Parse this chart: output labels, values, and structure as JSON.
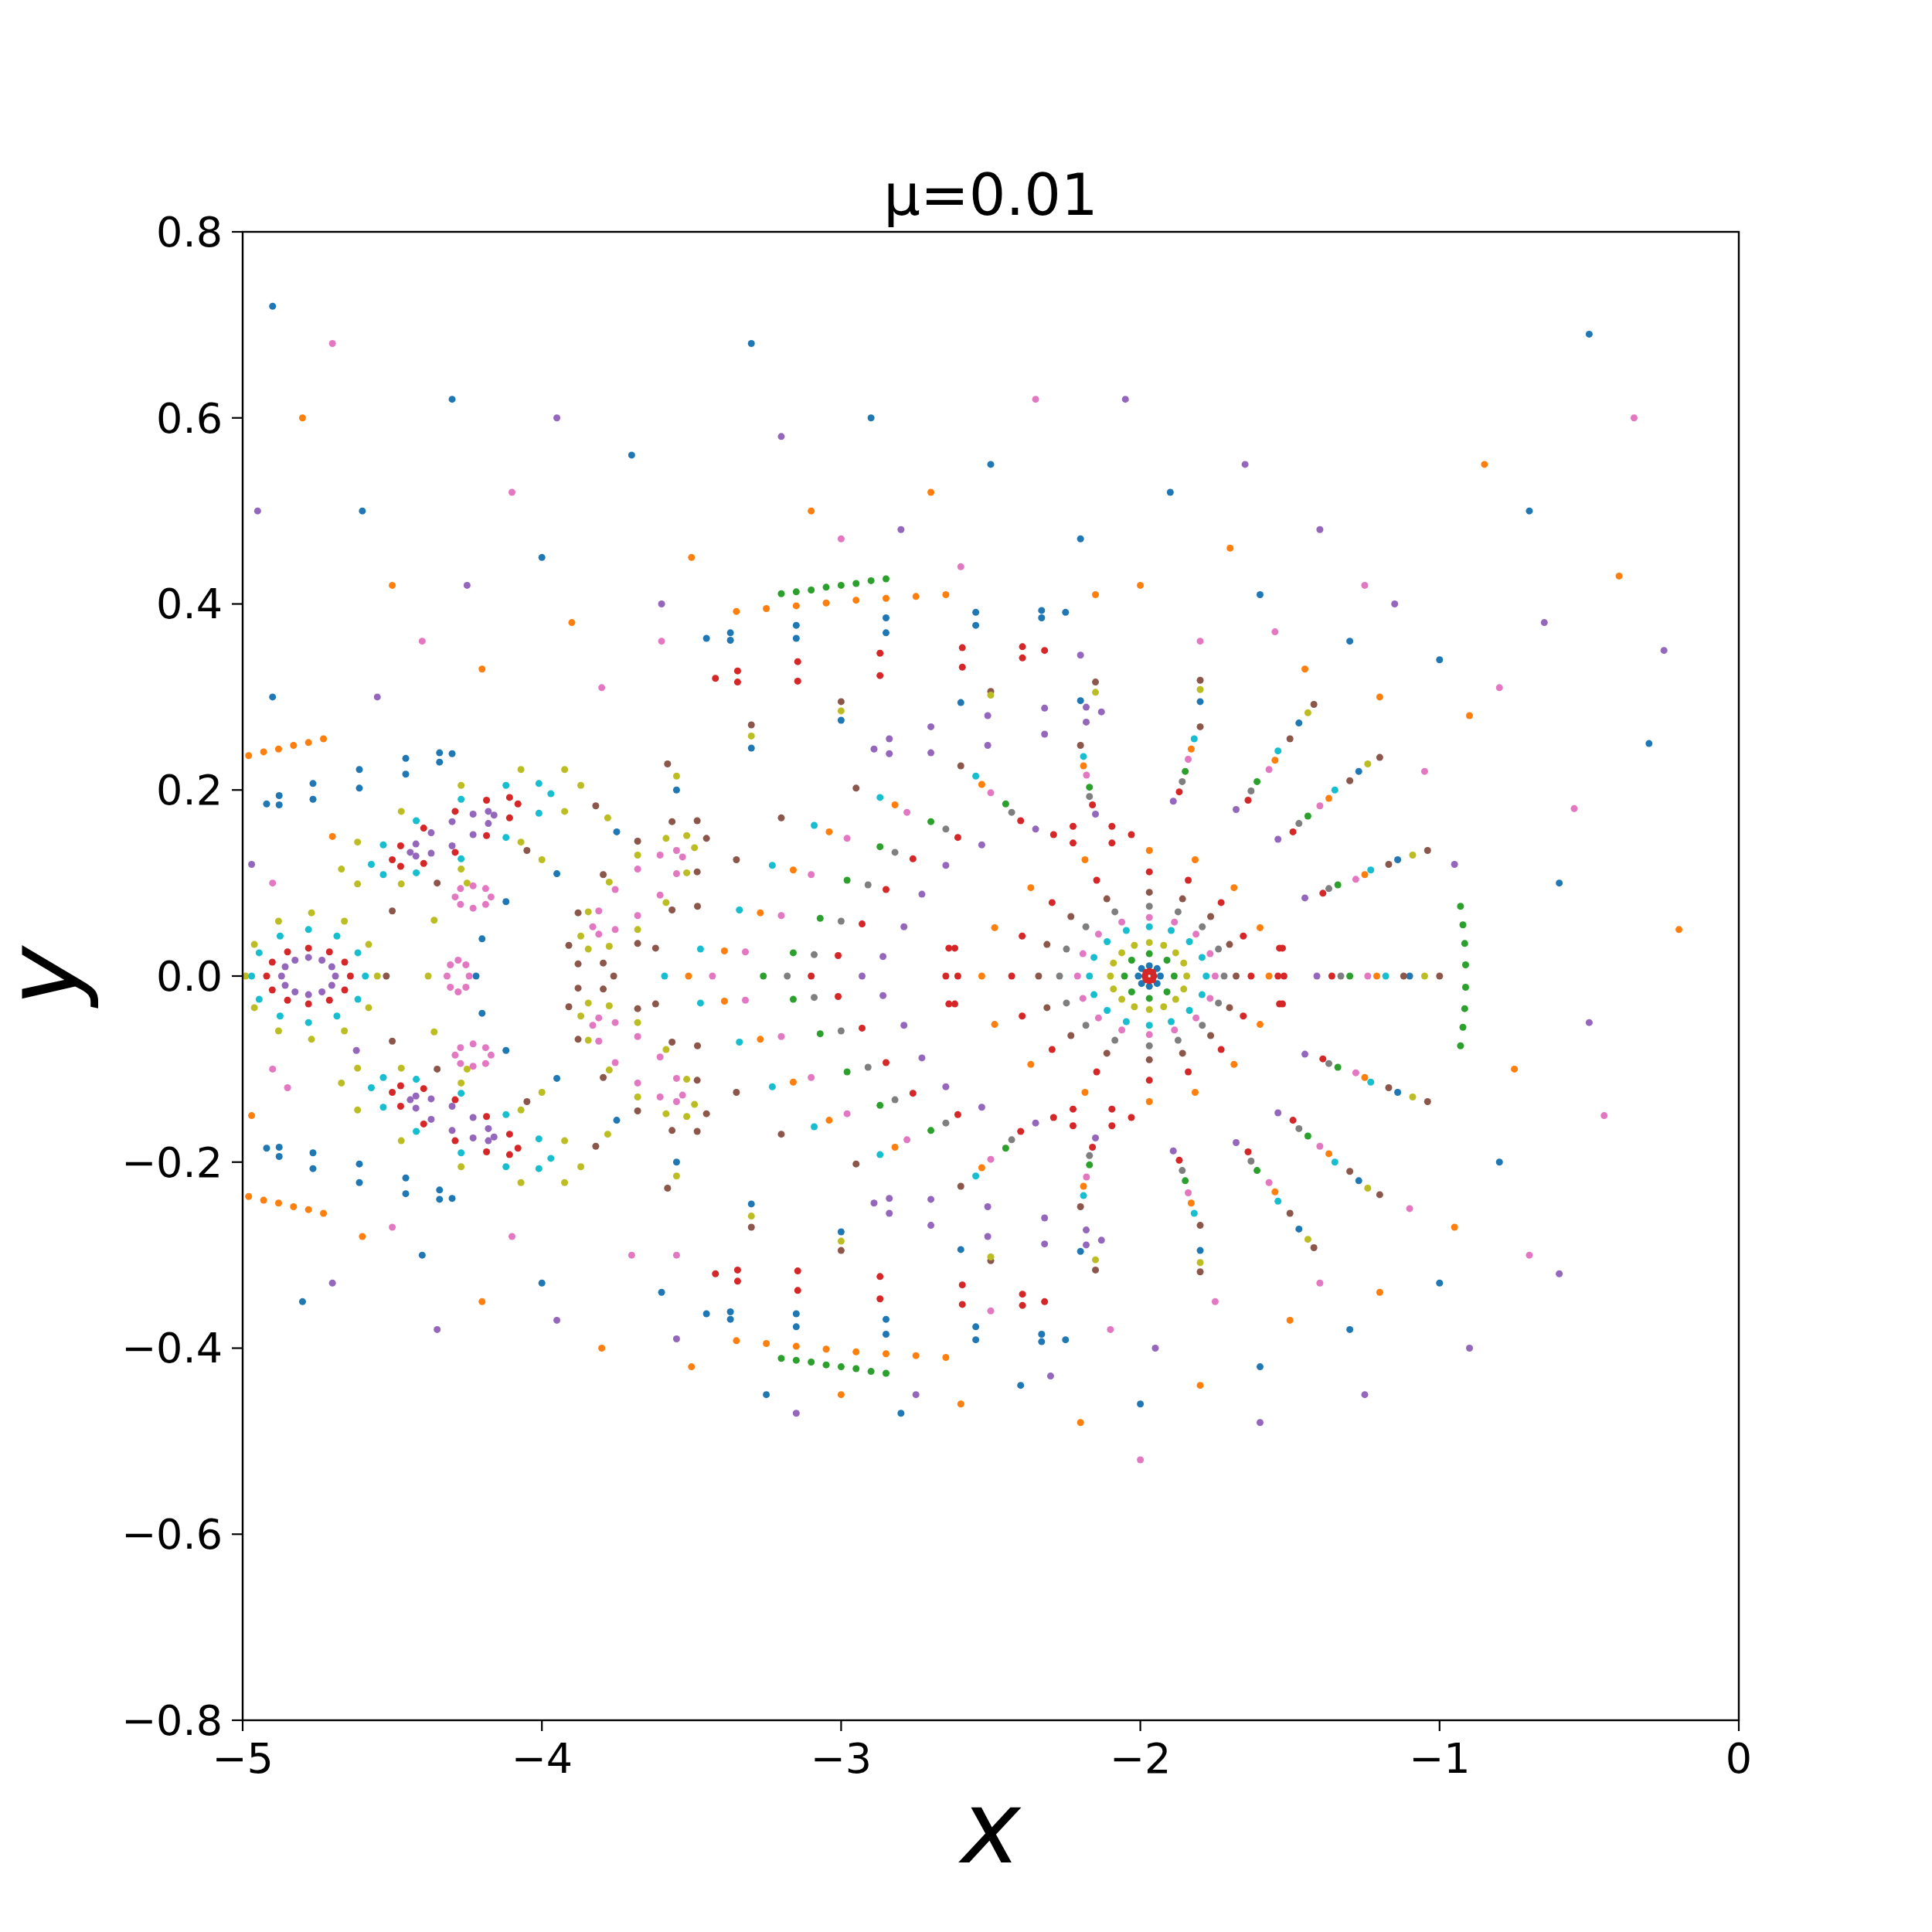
{
  "chart_data": {
    "type": "scatter",
    "title": "μ=0.01",
    "xlabel": "x",
    "ylabel": "y",
    "xlim": [
      -5,
      0
    ],
    "ylim": [
      -0.8,
      0.8
    ],
    "xticks": [
      {
        "value": -5,
        "label": "−5"
      },
      {
        "value": -4,
        "label": "−4"
      },
      {
        "value": -3,
        "label": "−3"
      },
      {
        "value": -2,
        "label": "−2"
      },
      {
        "value": -1,
        "label": "−1"
      },
      0
    ],
    "yticks": [
      {
        "value": -0.8,
        "label": "−0.8"
      },
      {
        "value": -0.6,
        "label": "−0.6"
      },
      {
        "value": -0.4,
        "label": "−0.4"
      },
      {
        "value": -0.2,
        "label": "−0.2"
      },
      {
        "value": 0,
        "label": "0.0"
      },
      0.2,
      0.4,
      0.6,
      0.8
    ],
    "marker": "circle",
    "series": [
      {
        "color": "#1f77b4",
        "x": [
          -4.9,
          -4.6,
          -4.3,
          -4.0,
          -3.7,
          -3.3,
          -2.9,
          -2.5,
          -2.2,
          -1.9,
          -1.6,
          -1.3,
          -1.0,
          -0.7,
          -0.5,
          -0.3,
          -0.6,
          -0.8,
          -1.0,
          -1.3,
          -1.6,
          -2.0,
          -2.4,
          -2.8,
          -3.25,
          -3.6,
          -4.0,
          -4.4,
          -4.8,
          -4.9
        ],
        "values": [
          0.72,
          0.5,
          0.62,
          0.45,
          0.56,
          0.68,
          0.6,
          0.55,
          0.47,
          0.52,
          0.41,
          0.36,
          0.34,
          0.5,
          0.69,
          0.25,
          0.1,
          -0.2,
          -0.33,
          -0.38,
          -0.42,
          -0.46,
          -0.44,
          -0.47,
          -0.45,
          -0.34,
          -0.33,
          -0.3,
          -0.35,
          0.3
        ]
      },
      {
        "color": "#ff7f0e",
        "x": [
          -4.8,
          -4.5,
          -4.2,
          -3.9,
          -3.5,
          -3.1,
          -2.7,
          -2.15,
          -2.0,
          -1.7,
          -1.45,
          -1.2,
          -0.9,
          -0.85,
          -0.4,
          -0.2,
          -0.75,
          -0.95,
          -1.2,
          -1.5,
          -1.8,
          -2.2,
          -2.6,
          -3.0,
          -3.5,
          -3.8,
          -4.2,
          -4.6,
          -4.97,
          -4.7
        ],
        "values": [
          0.6,
          0.42,
          0.33,
          0.38,
          0.45,
          0.5,
          0.52,
          0.41,
          0.42,
          0.46,
          0.33,
          0.3,
          0.28,
          0.55,
          0.43,
          0.05,
          -0.1,
          -0.27,
          -0.34,
          -0.37,
          -0.44,
          -0.48,
          -0.46,
          -0.45,
          -0.42,
          -0.4,
          -0.35,
          -0.28,
          -0.15,
          0.15
        ]
      },
      {
        "color": "#e377c2",
        "x": [
          -4.7,
          -4.4,
          -4.1,
          -3.8,
          -3.6,
          -3.0,
          -2.6,
          -2.35,
          -1.8,
          -1.55,
          -1.25,
          -1.05,
          -0.8,
          -0.55,
          -0.35,
          -0.45,
          -0.7,
          -1.1,
          -1.4,
          -1.75,
          -2.1,
          -2.5,
          -2.0,
          -3.55,
          -3.7,
          -4.1,
          -4.5,
          -4.85,
          -4.9,
          -4.9
        ],
        "values": [
          0.68,
          0.36,
          0.52,
          0.31,
          0.36,
          0.47,
          0.44,
          0.62,
          0.36,
          0.37,
          0.42,
          0.22,
          0.31,
          0.18,
          0.6,
          -0.15,
          -0.3,
          -0.25,
          -0.33,
          -0.35,
          -0.38,
          -0.36,
          -0.52,
          -0.3,
          -0.3,
          -0.28,
          -0.27,
          -0.12,
          0.1,
          -0.1
        ]
      },
      {
        "color": "#9467bd",
        "x": [
          -4.95,
          -4.55,
          -4.25,
          -3.95,
          -3.6,
          -3.2,
          -2.8,
          -2.2,
          -2.05,
          -1.65,
          -1.4,
          -1.15,
          -0.95,
          -0.65,
          -0.25,
          -0.5,
          -0.6,
          -0.9,
          -1.25,
          -1.6,
          -1.95,
          -2.3,
          -2.75,
          -3.15,
          -3.55,
          -3.95,
          -4.35,
          -4.7,
          -4.97,
          -4.62
        ],
        "values": [
          0.5,
          0.3,
          0.42,
          0.6,
          0.4,
          0.58,
          0.48,
          0.345,
          0.62,
          0.55,
          0.48,
          0.4,
          0.12,
          0.38,
          0.35,
          -0.05,
          -0.32,
          -0.4,
          -0.45,
          -0.48,
          -0.4,
          -0.43,
          -0.45,
          -0.47,
          -0.39,
          -0.37,
          -0.38,
          -0.33,
          0.12,
          -0.08
        ]
      },
      {
        "color": "#8c564b",
        "x": [
          -1.0,
          -1.04,
          -1.2,
          -1.42,
          -1.8,
          -2.15,
          -2.5,
          -3.0,
          -3.3,
          -3.58,
          -3.82,
          -4.05,
          -4.35,
          -4.5,
          -4.52,
          -4.5,
          -4.35,
          -4.05,
          -3.82,
          -3.58,
          -3.3,
          -3.0,
          -2.5,
          -2.15,
          -1.8,
          -1.42,
          -1.2,
          -1.04
        ],
        "values": [
          0,
          0.135,
          0.235,
          0.292,
          0.318,
          0.316,
          0.306,
          0.295,
          0.27,
          0.228,
          0.183,
          0.135,
          0.1,
          0.07,
          0,
          -0.07,
          -0.1,
          -0.135,
          -0.183,
          -0.228,
          -0.27,
          -0.295,
          -0.306,
          -0.316,
          -0.318,
          -0.292,
          -0.235,
          -0.135
        ]
      },
      {
        "color": "#bcbd22",
        "x": [
          -1.05,
          -1.09,
          -1.24,
          -1.44,
          -1.8,
          -2.15,
          -2.5,
          -3.0,
          -3.3,
          -3.55,
          -3.78,
          -4.0,
          -4.25,
          -4.36,
          -4.38,
          -4.36,
          -4.25,
          -4.0,
          -3.78,
          -3.55,
          -3.3,
          -3.0,
          -2.5,
          -2.15,
          -1.8,
          -1.44,
          -1.24,
          -1.09
        ],
        "values": [
          0,
          0.13,
          0.228,
          0.283,
          0.308,
          0.305,
          0.302,
          0.285,
          0.258,
          0.215,
          0.17,
          0.125,
          0.1,
          0.06,
          0,
          -0.06,
          -0.1,
          -0.125,
          -0.17,
          -0.215,
          -0.258,
          -0.285,
          -0.302,
          -0.305,
          -0.308,
          -0.283,
          -0.228,
          -0.13
        ]
      },
      {
        "color": "#1f77b4",
        "x": [
          -1.1,
          -1.14,
          -1.27,
          -1.47,
          -1.8,
          -2.2,
          -2.6,
          -3.0,
          -3.3,
          -3.55,
          -3.75,
          -3.95,
          -4.12,
          -4.2,
          -4.22,
          -4.2,
          -4.12,
          -3.95,
          -3.75,
          -3.55,
          -3.3,
          -3.0,
          -2.6,
          -2.2,
          -1.8,
          -1.47,
          -1.27,
          -1.14
        ],
        "values": [
          0,
          0.125,
          0.22,
          0.272,
          0.295,
          0.296,
          0.294,
          0.275,
          0.245,
          0.2,
          0.155,
          0.11,
          0.08,
          0.04,
          0,
          -0.04,
          -0.08,
          -0.11,
          -0.155,
          -0.2,
          -0.245,
          -0.275,
          -0.294,
          -0.296,
          -0.295,
          -0.272,
          -0.22,
          -0.125
        ]
      },
      {
        "color": "#8c564b",
        "x": [
          -1.12,
          -1.17,
          -1.3,
          -1.5,
          -1.8,
          -2.2,
          -2.6,
          -2.95,
          -3.2,
          -3.35,
          -3.48,
          -3.62,
          -3.76,
          -3.62,
          -3.48,
          -3.35,
          -3.2,
          -2.95,
          -2.6,
          -2.2,
          -1.8,
          -1.5,
          -1.3,
          -1.17
        ],
        "values": [
          0,
          0.12,
          0.21,
          0.255,
          0.268,
          0.248,
          0.226,
          0.202,
          0.17,
          0.125,
          0.075,
          0.03,
          0,
          -0.03,
          -0.075,
          -0.125,
          -0.17,
          -0.202,
          -0.226,
          -0.248,
          -0.268,
          -0.255,
          -0.21,
          -0.12
        ]
      },
      {
        "color": "#17becf",
        "x": [
          -1.18,
          -1.23,
          -1.35,
          -1.54,
          -1.82,
          -2.19,
          -2.55,
          -2.87,
          -3.09,
          -3.23,
          -3.34,
          -3.47,
          -3.59,
          -3.47,
          -3.34,
          -3.23,
          -3.09,
          -2.87,
          -2.55,
          -2.19,
          -1.82,
          -1.54,
          -1.35,
          -1.23
        ],
        "values": [
          0,
          0.114,
          0.2,
          0.242,
          0.255,
          0.236,
          0.215,
          0.192,
          0.162,
          0.119,
          0.071,
          0.029,
          0,
          -0.029,
          -0.071,
          -0.119,
          -0.162,
          -0.192,
          -0.215,
          -0.236,
          -0.255,
          -0.242,
          -0.2,
          -0.114
        ]
      },
      {
        "color": "#ff7f0e",
        "x": [
          -1.21,
          -1.25,
          -1.37,
          -1.55,
          -1.83,
          -2.19,
          -2.53,
          -2.82,
          -3.04,
          -3.16,
          -3.27,
          -3.39,
          -3.51,
          -3.39,
          -3.27,
          -3.16,
          -3.04,
          -2.82,
          -2.53,
          -2.19,
          -1.83,
          -1.55,
          -1.37,
          -1.25
        ],
        "values": [
          0,
          0.109,
          0.191,
          0.232,
          0.244,
          0.226,
          0.206,
          0.184,
          0.155,
          0.114,
          0.068,
          0.027,
          0,
          -0.027,
          -0.068,
          -0.114,
          -0.155,
          -0.184,
          -0.206,
          -0.226,
          -0.244,
          -0.232,
          -0.191,
          -0.109
        ]
      },
      {
        "color": "#e377c2",
        "x": [
          -1.24,
          -1.28,
          -1.4,
          -1.57,
          -1.84,
          -2.18,
          -2.5,
          -2.78,
          -2.98,
          -3.1,
          -3.2,
          -3.32,
          -3.43,
          -3.32,
          -3.2,
          -3.1,
          -2.98,
          -2.78,
          -2.5,
          -2.18,
          -1.84,
          -1.57,
          -1.4,
          -1.28
        ],
        "values": [
          0,
          0.104,
          0.183,
          0.222,
          0.233,
          0.216,
          0.197,
          0.176,
          0.148,
          0.109,
          0.065,
          0.026,
          0,
          -0.026,
          -0.065,
          -0.109,
          -0.148,
          -0.176,
          -0.197,
          -0.216,
          -0.233,
          -0.222,
          -0.183,
          -0.104
        ]
      },
      {
        "color": "#2ca02c",
        "x": [
          -1.3,
          -1.34,
          -1.44,
          -1.61,
          -1.85,
          -2.17,
          -2.45,
          -2.7,
          -2.87,
          -2.98,
          -3.07,
          -3.16,
          -3.26,
          -3.16,
          -3.07,
          -2.98,
          -2.87,
          -2.7,
          -2.45,
          -2.17,
          -1.85,
          -1.61,
          -1.44,
          -1.34
        ],
        "values": [
          0,
          0.098,
          0.172,
          0.209,
          0.22,
          0.203,
          0.185,
          0.166,
          0.139,
          0.103,
          0.062,
          0.025,
          0,
          -0.025,
          -0.062,
          -0.103,
          -0.139,
          -0.166,
          -0.185,
          -0.203,
          -0.22,
          -0.209,
          -0.172,
          -0.098
        ]
      },
      {
        "color": "#7f7f7f",
        "x": [
          -1.33,
          -1.37,
          -1.47,
          -1.63,
          -1.86,
          -2.17,
          -2.43,
          -2.65,
          -2.82,
          -2.91,
          -3.0,
          -3.09,
          -3.18,
          -3.09,
          -3.0,
          -2.91,
          -2.82,
          -2.65,
          -2.43,
          -2.17,
          -1.86,
          -1.63,
          -1.47,
          -1.37
        ],
        "values": [
          0,
          0.094,
          0.164,
          0.199,
          0.209,
          0.193,
          0.176,
          0.158,
          0.133,
          0.098,
          0.059,
          0.023,
          0,
          -0.023,
          -0.059,
          -0.098,
          -0.133,
          -0.158,
          -0.176,
          -0.193,
          -0.209,
          -0.199,
          -0.164,
          -0.094
        ]
      },
      {
        "color": "#d62728",
        "x": [
          -1.36,
          -1.39,
          -1.49,
          -1.64,
          -1.87,
          -2.16,
          -2.4,
          -2.61,
          -2.76,
          -2.85,
          -2.93,
          -3.01,
          -3.1,
          -3.01,
          -2.93,
          -2.85,
          -2.76,
          -2.61,
          -2.4,
          -2.16,
          -1.87,
          -1.64,
          -1.49,
          -1.39
        ],
        "values": [
          0,
          0.089,
          0.155,
          0.189,
          0.198,
          0.184,
          0.167,
          0.149,
          0.126,
          0.093,
          0.056,
          0.022,
          0,
          -0.022,
          -0.056,
          -0.093,
          -0.126,
          -0.149,
          -0.167,
          -0.184,
          -0.198,
          -0.189,
          -0.155,
          -0.089
        ]
      },
      {
        "color": "#9467bd",
        "x": [
          -1.41,
          -1.45,
          -1.54,
          -1.68,
          -1.89,
          -2.15,
          -2.35,
          -2.53,
          -2.65,
          -2.73,
          -2.79,
          -2.86,
          -2.93,
          -2.86,
          -2.79,
          -2.73,
          -2.65,
          -2.53,
          -2.35,
          -2.15,
          -1.89,
          -1.68,
          -1.54,
          -1.45
        ],
        "values": [
          0,
          0.084,
          0.147,
          0.179,
          0.188,
          0.174,
          0.158,
          0.141,
          0.119,
          0.088,
          0.053,
          0.021,
          0,
          -0.021,
          -0.053,
          -0.088,
          -0.119,
          -0.141,
          -0.158,
          -0.174,
          -0.188,
          -0.179,
          -0.147,
          -0.084
        ]
      },
      {
        "color": "#d62728",
        "x": [
          -2.61,
          -2.62,
          -2.64,
          -2.65,
          -2.64,
          -2.62,
          -2.03,
          -2.095,
          -2.225,
          -2.29,
          -2.225,
          -2.095,
          -1.52,
          -1.525,
          -1.535,
          -1.54,
          -1.535,
          -1.525,
          -2.03,
          -2.095,
          -2.225,
          -2.29,
          -2.225,
          -2.095
        ],
        "values": [
          0,
          0.03,
          0.03,
          0,
          -0.03,
          -0.03,
          0.152,
          0.161,
          0.161,
          0.152,
          0.143,
          0.143,
          0,
          0.03,
          0.03,
          0,
          -0.03,
          -0.03,
          -0.152,
          -0.143,
          -0.143,
          -0.152,
          -0.161,
          -0.161
        ]
      },
      {
        "color": "#ff7f0e",
        "x": [
          -1.57,
          -1.6,
          -1.687,
          -1.817,
          -1.97,
          -2.185,
          -2.366,
          -2.487,
          -2.53,
          -2.487,
          -2.366,
          -2.185,
          -1.97,
          -1.817,
          -1.687,
          -1.6
        ],
        "values": [
          0,
          0.052,
          0.095,
          0.125,
          0.135,
          0.125,
          0.095,
          0.052,
          0,
          -0.052,
          -0.095,
          -0.125,
          -0.135,
          -0.125,
          -0.095,
          -0.052
        ]
      },
      {
        "color": "#d62728",
        "x": [
          -1.63,
          -1.656,
          -1.73,
          -1.84,
          -1.97,
          -2.146,
          -2.295,
          -2.395,
          -2.43,
          -2.395,
          -2.295,
          -2.146,
          -1.97,
          -1.84,
          -1.73,
          -1.656
        ],
        "values": [
          0,
          0.043,
          0.079,
          0.103,
          0.112,
          0.103,
          0.079,
          0.043,
          0,
          -0.043,
          -0.079,
          -0.103,
          -0.112,
          -0.103,
          -0.079,
          -0.043
        ]
      },
      {
        "color": "#8c564b",
        "x": [
          -1.68,
          -1.702,
          -1.765,
          -1.859,
          -1.97,
          -2.112,
          -2.232,
          -2.312,
          -2.34,
          -2.312,
          -2.232,
          -2.112,
          -1.97,
          -1.859,
          -1.765,
          -1.702
        ],
        "values": [
          0,
          0.034,
          0.064,
          0.083,
          0.09,
          0.083,
          0.064,
          0.034,
          0,
          -0.034,
          -0.064,
          -0.083,
          -0.09,
          -0.083,
          -0.064,
          -0.034
        ]
      },
      {
        "color": "#7f7f7f",
        "x": [
          -1.72,
          -1.739,
          -1.793,
          -1.874,
          -1.97,
          -2.085,
          -2.182,
          -2.247,
          -2.27,
          -2.247,
          -2.182,
          -2.085,
          -1.97,
          -1.874,
          -1.793,
          -1.739
        ],
        "values": [
          0,
          0.029,
          0.053,
          0.069,
          0.075,
          0.069,
          0.053,
          0.029,
          0,
          -0.029,
          -0.053,
          -0.069,
          -0.075,
          -0.069,
          -0.053,
          -0.029
        ]
      },
      {
        "color": "#e377c2",
        "x": [
          -1.75,
          -1.767,
          -1.814,
          -1.886,
          -1.97,
          -2.062,
          -2.14,
          -2.192,
          -2.21,
          -2.192,
          -2.14,
          -2.062,
          -1.97,
          -1.886,
          -1.814,
          -1.767
        ],
        "values": [
          0,
          0.024,
          0.045,
          0.058,
          0.063,
          0.058,
          0.045,
          0.024,
          0,
          -0.024,
          -0.045,
          -0.058,
          -0.063,
          -0.058,
          -0.045,
          -0.024
        ]
      },
      {
        "color": "#17becf",
        "x": [
          -1.78,
          -1.794,
          -1.836,
          -1.897,
          -1.97,
          -2.047,
          -2.111,
          -2.155,
          -2.17,
          -2.155,
          -2.111,
          -2.047,
          -1.97,
          -1.897,
          -1.836,
          -1.794
        ],
        "values": [
          0,
          0.02,
          0.037,
          0.049,
          0.053,
          0.049,
          0.037,
          0.02,
          0,
          -0.02,
          -0.037,
          -0.049,
          -0.053,
          -0.049,
          -0.037,
          -0.02
        ]
      },
      {
        "color": "#bcbd22",
        "x": [
          -1.845,
          -1.855,
          -1.882,
          -1.922,
          -1.97,
          -2.02,
          -2.062,
          -2.09,
          -2.1,
          -2.09,
          -2.062,
          -2.02,
          -1.97,
          -1.922,
          -1.882,
          -1.855
        ],
        "values": [
          0,
          0.014,
          0.025,
          0.033,
          0.036,
          0.033,
          0.025,
          0.014,
          0,
          -0.014,
          -0.025,
          -0.033,
          -0.036,
          -0.033,
          -0.025,
          -0.014
        ]
      },
      {
        "color": "#2ca02c",
        "x": [
          -1.887,
          -1.911,
          -1.97,
          -2.029,
          -2.053,
          -2.029,
          -1.97,
          -1.911
        ],
        "values": [
          0,
          0.017,
          0.024,
          0.017,
          0,
          -0.017,
          -0.024,
          -0.017
        ]
      },
      {
        "color": "#1f77b4",
        "x": [
          -1.933,
          -1.944,
          -1.97,
          -1.996,
          -2.007,
          -1.996,
          -1.97,
          -1.944
        ],
        "values": [
          0,
          0.008,
          0.011,
          0.008,
          0,
          -0.008,
          -0.011,
          -0.008
        ]
      },
      {
        "color": "#d62728",
        "x": [
          -1.955,
          -1.959,
          -1.97,
          -1.981,
          -1.985,
          -1.981,
          -1.97,
          -1.959
        ],
        "values": [
          0,
          0.004,
          0.005,
          0.004,
          0,
          -0.004,
          -0.005,
          -0.004
        ]
      },
      {
        "color": "#8c564b",
        "x": [
          -3.45,
          -3.481,
          -3.565,
          -3.68,
          -3.795,
          -3.879,
          -3.91,
          -3.879,
          -3.795,
          -3.68,
          -3.565,
          -3.481,
          -3.45,
          -3.481,
          -3.565,
          -3.68,
          -3.795,
          -3.879,
          -3.91,
          -3.879,
          -3.795,
          -3.68,
          -3.565,
          -3.481
        ],
        "values": [
          0.148,
          0.167,
          0.166,
          0.145,
          0.109,
          0.068,
          0.033,
          0.013,
          0.014,
          0.035,
          0.071,
          0.112,
          -0.148,
          -0.167,
          -0.166,
          -0.145,
          -0.109,
          -0.068,
          -0.033,
          -0.013,
          -0.014,
          -0.035,
          -0.071,
          -0.112
        ]
      },
      {
        "color": "#bcbd22",
        "x": [
          -3.49,
          -3.516,
          -3.585,
          -3.68,
          -3.775,
          -3.845,
          -3.87,
          -3.845,
          -3.775,
          -3.68,
          -3.585,
          -3.516,
          -3.49,
          -3.516,
          -3.585,
          -3.68,
          -3.775,
          -3.845,
          -3.87,
          -3.845,
          -3.775,
          -3.68,
          -3.585,
          -3.516
        ],
        "values": [
          0.138,
          0.151,
          0.148,
          0.13,
          0.101,
          0.069,
          0.043,
          0.029,
          0.032,
          0.05,
          0.079,
          0.111,
          -0.138,
          -0.151,
          -0.148,
          -0.13,
          -0.101,
          -0.069,
          -0.043,
          -0.029,
          -0.032,
          -0.05,
          -0.079,
          -0.111
        ]
      },
      {
        "color": "#e377c2",
        "x": [
          -3.53,
          -3.55,
          -3.605,
          -3.68,
          -3.755,
          -3.81,
          -3.83,
          -3.81,
          -3.755,
          -3.68,
          -3.605,
          -3.55,
          -3.53,
          -3.55,
          -3.605,
          -3.68,
          -3.755,
          -3.81,
          -3.83,
          -3.81,
          -3.755,
          -3.68,
          -3.605,
          -3.55
        ],
        "values": [
          0.128,
          0.135,
          0.13,
          0.115,
          0.093,
          0.07,
          0.053,
          0.045,
          0.05,
          0.065,
          0.087,
          0.11,
          -0.128,
          -0.135,
          -0.13,
          -0.115,
          -0.093,
          -0.07,
          -0.053,
          -0.045,
          -0.05,
          -0.065,
          -0.087,
          -0.11
        ]
      },
      {
        "color": "#9467bd",
        "x": [
          -2.13,
          -2.181,
          -2.32,
          -2.51,
          -2.7,
          -2.839,
          -2.89,
          -2.839,
          -2.7,
          -2.51,
          -2.32,
          -2.181,
          -2.13,
          -2.181,
          -2.32,
          -2.51,
          -2.7,
          -2.839,
          -2.89,
          -2.839,
          -2.7,
          -2.51,
          -2.32,
          -2.181
        ],
        "values": [
          0.284,
          0.289,
          0.288,
          0.28,
          0.268,
          0.255,
          0.244,
          0.239,
          0.24,
          0.248,
          0.26,
          0.273,
          -0.284,
          -0.289,
          -0.288,
          -0.28,
          -0.268,
          -0.255,
          -0.244,
          -0.239,
          -0.24,
          -0.248,
          -0.26,
          -0.273
        ]
      },
      {
        "color": "#d62728",
        "x": [
          -2.32,
          -2.394,
          -2.595,
          -2.87,
          -3.145,
          -3.346,
          -3.42,
          -3.346,
          -3.145,
          -2.87,
          -2.595,
          -2.394,
          -2.32,
          -2.394,
          -2.595,
          -2.87,
          -3.145,
          -3.346,
          -3.42,
          -3.346,
          -3.145,
          -2.87,
          -2.595,
          -2.394
        ],
        "values": [
          0.35,
          0.354,
          0.353,
          0.347,
          0.338,
          0.328,
          0.32,
          0.316,
          0.317,
          0.323,
          0.332,
          0.342,
          -0.35,
          -0.354,
          -0.353,
          -0.347,
          -0.338,
          -0.328,
          -0.32,
          -0.316,
          -0.317,
          -0.323,
          -0.332,
          -0.342
        ]
      },
      {
        "color": "#1f77b4",
        "x": [
          -2.25,
          -2.33,
          -2.55,
          -2.85,
          -3.15,
          -3.37,
          -3.45,
          -3.37,
          -3.15,
          -2.85,
          -2.55,
          -2.33,
          -2.25,
          -2.33,
          -2.55,
          -2.85,
          -3.15,
          -3.37,
          -3.45,
          -3.37,
          -3.15,
          -2.85,
          -2.55,
          -2.33
        ],
        "values": [
          0.391,
          0.393,
          0.391,
          0.385,
          0.377,
          0.369,
          0.363,
          0.361,
          0.363,
          0.369,
          0.377,
          0.385,
          -0.391,
          -0.393,
          -0.391,
          -0.385,
          -0.377,
          -0.369,
          -0.363,
          -0.361,
          -0.363,
          -0.369,
          -0.377,
          -0.385
        ]
      },
      {
        "color": "#ff7f0e",
        "x": [
          -3.35,
          -3.25,
          -3.15,
          -3.05,
          -2.95,
          -2.85,
          -2.75,
          -2.65,
          -3.35,
          -3.25,
          -3.15,
          -3.05,
          -2.95,
          -2.85,
          -2.75,
          -2.65
        ],
        "values": [
          0.392,
          0.395,
          0.398,
          0.401,
          0.404,
          0.406,
          0.408,
          0.41,
          -0.392,
          -0.395,
          -0.398,
          -0.401,
          -0.404,
          -0.406,
          -0.408,
          -0.41
        ]
      },
      {
        "color": "#2ca02c",
        "x": [
          -3.2,
          -3.15,
          -3.1,
          -3.05,
          -3.0,
          -2.95,
          -2.9,
          -2.85,
          -3.2,
          -3.15,
          -3.1,
          -3.05,
          -3.0,
          -2.95,
          -2.9,
          -2.85
        ],
        "values": [
          0.411,
          0.413,
          0.415,
          0.418,
          0.42,
          0.422,
          0.425,
          0.427,
          -0.411,
          -0.413,
          -0.415,
          -0.418,
          -0.42,
          -0.422,
          -0.425,
          -0.427
        ]
      },
      {
        "color": "#bcbd22",
        "x": [
          -4.55,
          -4.579,
          -4.66,
          -4.77,
          -4.88,
          -4.961,
          -4.99,
          -4.961,
          -4.88,
          -4.77,
          -4.66,
          -4.579
        ],
        "values": [
          0,
          0.034,
          0.059,
          0.068,
          0.059,
          0.034,
          0,
          -0.034,
          -0.059,
          -0.068,
          -0.059,
          -0.034
        ]
      },
      {
        "color": "#17becf",
        "x": [
          -4.59,
          -4.615,
          -4.685,
          -4.78,
          -4.875,
          -4.945,
          -4.97,
          -4.945,
          -4.875,
          -4.78,
          -4.685,
          -4.615
        ],
        "values": [
          0,
          0.025,
          0.043,
          0.05,
          0.043,
          0.025,
          0,
          -0.025,
          -0.043,
          -0.05,
          -0.043,
          -0.025
        ]
      },
      {
        "color": "#d62728",
        "x": [
          -4.64,
          -4.659,
          -4.71,
          -4.78,
          -4.85,
          -4.901,
          -4.92,
          -4.901,
          -4.85,
          -4.78,
          -4.71,
          -4.659
        ],
        "values": [
          0,
          0.015,
          0.026,
          0.03,
          0.026,
          0.015,
          0,
          -0.015,
          -0.026,
          -0.03,
          -0.026,
          -0.015
        ]
      },
      {
        "color": "#9467bd",
        "x": [
          -4.69,
          -4.702,
          -4.735,
          -4.78,
          -4.825,
          -4.858,
          -4.87,
          -4.858,
          -4.825,
          -4.78,
          -4.735,
          -4.702
        ],
        "values": [
          0,
          0.01,
          0.017,
          0.02,
          0.017,
          0.01,
          0,
          -0.01,
          -0.017,
          -0.02,
          -0.017,
          -0.01
        ]
      },
      {
        "color": "#bcbd22",
        "x": [
          -3.87,
          -3.924,
          -4.07,
          -4.27,
          -4.47,
          -4.616,
          -4.67,
          -4.616,
          -4.47,
          -4.27,
          -4.07,
          -3.924,
          -3.87,
          -3.924,
          -4.07,
          -4.27,
          -4.47,
          -4.616,
          -4.67,
          -4.616,
          -4.47,
          -4.27,
          -4.07,
          -3.924
        ],
        "values": [
          0.205,
          0.222,
          0.222,
          0.205,
          0.177,
          0.144,
          0.115,
          0.099,
          0.099,
          0.115,
          0.144,
          0.177,
          -0.205,
          -0.222,
          -0.222,
          -0.205,
          -0.177,
          -0.144,
          -0.115,
          -0.099,
          -0.099,
          -0.115,
          -0.144,
          -0.177
        ]
      },
      {
        "color": "#17becf",
        "x": [
          -3.97,
          -4.01,
          -4.12,
          -4.27,
          -4.42,
          -4.53,
          -4.57,
          -4.53,
          -4.42,
          -4.27,
          -4.12,
          -4.01,
          -3.97,
          -4.01,
          -4.12,
          -4.27,
          -4.42,
          -4.53,
          -4.57,
          -4.53,
          -4.42,
          -4.27,
          -4.12,
          -4.01
        ],
        "values": [
          0.196,
          0.207,
          0.205,
          0.19,
          0.167,
          0.141,
          0.12,
          0.109,
          0.111,
          0.126,
          0.149,
          0.175,
          -0.196,
          -0.207,
          -0.205,
          -0.19,
          -0.167,
          -0.141,
          -0.12,
          -0.109,
          -0.111,
          -0.126,
          -0.149,
          -0.175
        ]
      },
      {
        "color": "#d62728",
        "x": [
          -4.08,
          -4.108,
          -4.185,
          -4.29,
          -4.395,
          -4.472,
          -4.5,
          -4.472,
          -4.395,
          -4.29,
          -4.185,
          -4.108,
          -4.08,
          -4.108,
          -4.185,
          -4.29,
          -4.395,
          -4.472,
          -4.5,
          -4.472,
          -4.395,
          -4.29,
          -4.185,
          -4.108
        ],
        "values": [
          0.185,
          0.192,
          0.189,
          0.177,
          0.159,
          0.14,
          0.125,
          0.118,
          0.121,
          0.133,
          0.151,
          0.17,
          -0.185,
          -0.192,
          -0.189,
          -0.177,
          -0.159,
          -0.14,
          -0.125,
          -0.118,
          -0.121,
          -0.133,
          -0.151,
          -0.17
        ]
      },
      {
        "color": "#9467bd",
        "x": [
          -4.16,
          -4.179,
          -4.23,
          -4.3,
          -4.37,
          -4.421,
          -4.44,
          -4.421,
          -4.37,
          -4.3,
          -4.23,
          -4.179,
          -4.16,
          -4.179,
          -4.23,
          -4.3,
          -4.37,
          -4.421,
          -4.44,
          -4.421,
          -4.37,
          -4.3,
          -4.23,
          -4.179
        ],
        "values": [
          0.173,
          0.177,
          0.174,
          0.166,
          0.154,
          0.142,
          0.133,
          0.129,
          0.132,
          0.14,
          0.152,
          0.164,
          -0.173,
          -0.177,
          -0.174,
          -0.166,
          -0.154,
          -0.142,
          -0.133,
          -0.129,
          -0.132,
          -0.14,
          -0.152,
          -0.164
        ]
      },
      {
        "color": "#1f77b4",
        "x": [
          -4.3,
          -4.342,
          -4.455,
          -4.61,
          -4.765,
          -4.878,
          -4.92,
          -4.878,
          -4.765,
          -4.61,
          -4.455,
          -4.342,
          -4.3,
          -4.342,
          -4.455,
          -4.61,
          -4.765,
          -4.878,
          -4.92,
          -4.878,
          -4.765,
          -4.61,
          -4.455,
          -4.342
        ],
        "values": [
          0.239,
          0.24,
          0.234,
          0.222,
          0.207,
          0.194,
          0.185,
          0.184,
          0.19,
          0.202,
          0.217,
          0.23,
          -0.239,
          -0.24,
          -0.234,
          -0.222,
          -0.207,
          -0.194,
          -0.185,
          -0.184,
          -0.19,
          -0.202,
          -0.217,
          -0.23
        ]
      },
      {
        "color": "#ff7f0e",
        "x": [
          -4.98,
          -4.93,
          -4.88,
          -4.83,
          -4.78,
          -4.73,
          -4.98,
          -4.93,
          -4.88,
          -4.83,
          -4.78,
          -4.73
        ],
        "values": [
          0.237,
          0.241,
          0.244,
          0.248,
          0.251,
          0.255,
          -0.237,
          -0.241,
          -0.244,
          -0.248,
          -0.251,
          -0.255
        ]
      },
      {
        "color": "#e377c2",
        "x": [
          -4.243,
          -4.254,
          -4.28,
          -4.306,
          -4.317,
          -4.306,
          -4.28,
          -4.254,
          -4.17,
          -4.188,
          -4.23,
          -4.272,
          -4.29,
          -4.272,
          -4.23,
          -4.188,
          -4.17,
          -4.188,
          -4.23,
          -4.272,
          -4.29,
          -4.272,
          -4.23,
          -4.188
        ],
        "values": [
          0,
          0.012,
          0.017,
          0.012,
          0,
          -0.012,
          -0.017,
          -0.012,
          0.085,
          0.094,
          0.097,
          0.094,
          0.085,
          0.077,
          0.073,
          0.077,
          -0.085,
          -0.094,
          -0.097,
          -0.094,
          -0.085,
          -0.077,
          -0.073,
          -0.077
        ]
      },
      {
        "color": "#2ca02c",
        "x": [
          -0.93,
          -0.922,
          -0.916,
          -0.913,
          -0.913,
          -0.916,
          -0.922,
          -0.93
        ],
        "values": [
          0.075,
          0.055,
          0.035,
          0.012,
          -0.012,
          -0.035,
          -0.055,
          -0.075
        ]
      }
    ]
  }
}
